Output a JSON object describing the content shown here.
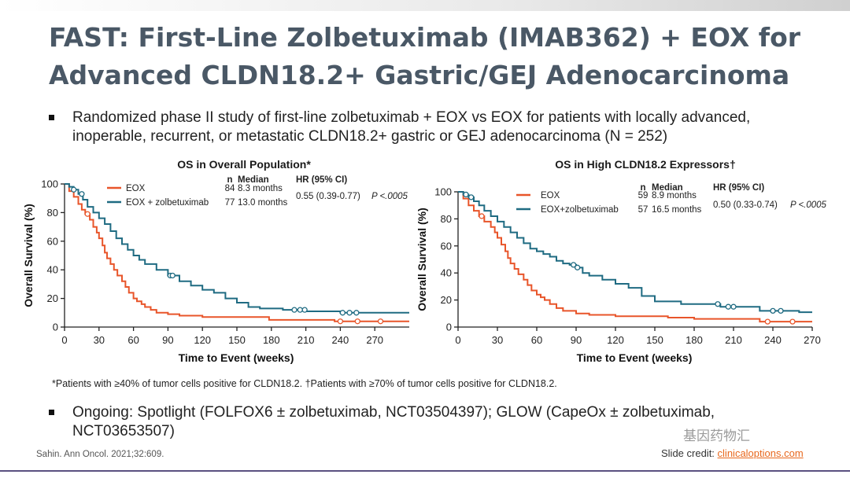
{
  "slide": {
    "title": "FAST: First-Line Zolbetuximab (IMAB362) + EOX for Advanced CLDN18.2+ Gastric/GEJ Adenocarcinoma",
    "bullet1": "Randomized phase II study of first-line zolbetuximab + EOX vs EOX for patients with locally advanced, inoperable, recurrent, or metastatic CLDN18.2+ gastric or GEJ adenocarcinoma (N = 252)",
    "bullet2": "Ongoing: Spotlight (FOLFOX6 ± zolbetuximab, NCT03504397); GLOW (CapeOx ± zolbetuximab, NCT03653507)",
    "footnote": "*Patients with ≥40% of tumor cells positive for CLDN18.2. †Patients with ≥70% of tumor cells positive for CLDN18.2.",
    "reference": "Sahin. Ann Oncol. 2021;32:609.",
    "credit_prefix": "Slide credit: ",
    "credit_link": "clinicaloptions.com",
    "watermark": "基因药物汇"
  },
  "colors": {
    "eox": "#e8552a",
    "zolb": "#1f6b82",
    "title": "#4a5866",
    "link": "#e8681e"
  },
  "chart_data": [
    {
      "type": "line",
      "title": "OS in Overall Population*",
      "xlabel": "Time to Event (weeks)",
      "ylabel": "Overall Survival (%)",
      "xlim": [
        0,
        300
      ],
      "ylim": [
        0,
        100
      ],
      "x_ticks": [
        0,
        30,
        60,
        90,
        120,
        150,
        180,
        210,
        240,
        270
      ],
      "y_ticks": [
        0,
        20,
        40,
        60,
        80,
        100
      ],
      "legend_header": {
        "n": "n",
        "median": "Median",
        "hr": "HR (95% CI)"
      },
      "hr_text": "0.55 (0.39-0.77)",
      "p_text": "P <.0005",
      "series": [
        {
          "name": "EOX",
          "n": "84",
          "median": "8.3 months",
          "x": [
            0,
            4,
            8,
            12,
            15,
            18,
            22,
            25,
            28,
            30,
            33,
            35,
            37,
            40,
            43,
            46,
            50,
            53,
            56,
            60,
            63,
            67,
            70,
            75,
            80,
            90,
            100,
            120,
            160,
            178,
            200,
            235,
            260,
            300
          ],
          "y": [
            100,
            95,
            91,
            86,
            82,
            79,
            75,
            70,
            66,
            62,
            57,
            52,
            48,
            44,
            40,
            36,
            32,
            28,
            24,
            20,
            18,
            16,
            14,
            12,
            10,
            9,
            8,
            7,
            7,
            5,
            5,
            4,
            4,
            4
          ]
        },
        {
          "name": "EOX + zolbetuximab",
          "n": "77",
          "median": "13.0 months",
          "x": [
            0,
            4,
            8,
            12,
            16,
            20,
            25,
            30,
            35,
            40,
            45,
            50,
            55,
            60,
            65,
            70,
            80,
            90,
            100,
            110,
            120,
            130,
            140,
            150,
            160,
            170,
            190,
            210,
            240,
            300
          ],
          "y": [
            100,
            98,
            96,
            93,
            89,
            84,
            80,
            76,
            72,
            67,
            62,
            58,
            54,
            50,
            47,
            44,
            40,
            36,
            32,
            29,
            26,
            24,
            20,
            17,
            14,
            13,
            12,
            11,
            10,
            10
          ]
        }
      ],
      "censors": [
        {
          "series": 0,
          "x": [
            20,
            240,
            255,
            275
          ]
        },
        {
          "series": 1,
          "x": [
            8,
            15,
            92,
            94,
            200,
            205,
            209,
            242,
            248,
            254
          ]
        }
      ]
    },
    {
      "type": "line",
      "title": "OS in High CLDN18.2 Expressors†",
      "xlabel": "Time to Event (weeks)",
      "ylabel": "Overall Survival (%)",
      "xlim": [
        0,
        270
      ],
      "ylim": [
        0,
        100
      ],
      "x_ticks": [
        0,
        30,
        60,
        90,
        120,
        150,
        180,
        210,
        240,
        270
      ],
      "y_ticks": [
        0,
        20,
        40,
        60,
        80,
        100
      ],
      "legend_header": {
        "n": "n",
        "median": "Median",
        "hr": "HR (95% CI)"
      },
      "hr_text": "0.50 (0.33-0.74)",
      "p_text": "P <.0005",
      "series": [
        {
          "name": "EOX",
          "n": "59",
          "median": "8.9 months",
          "x": [
            0,
            4,
            8,
            12,
            16,
            20,
            25,
            28,
            30,
            33,
            36,
            38,
            40,
            43,
            46,
            50,
            53,
            56,
            60,
            63,
            66,
            70,
            75,
            80,
            90,
            100,
            120,
            160,
            180,
            200,
            230,
            260
          ],
          "y": [
            100,
            95,
            90,
            86,
            82,
            78,
            74,
            70,
            66,
            61,
            56,
            51,
            47,
            43,
            39,
            35,
            31,
            27,
            24,
            22,
            20,
            17,
            14,
            12,
            10,
            9,
            8,
            7,
            6,
            6,
            4,
            4
          ]
        },
        {
          "name": "EOX+zolbetuximab",
          "n": "57",
          "median": "16.5 months",
          "x": [
            0,
            4,
            8,
            12,
            16,
            20,
            25,
            30,
            35,
            40,
            45,
            50,
            55,
            60,
            65,
            70,
            75,
            80,
            85,
            90,
            95,
            100,
            110,
            120,
            130,
            140,
            150,
            170,
            200,
            230,
            260
          ],
          "y": [
            100,
            98,
            96,
            93,
            90,
            86,
            82,
            78,
            74,
            70,
            66,
            62,
            58,
            56,
            54,
            52,
            49,
            47,
            46,
            44,
            40,
            38,
            35,
            32,
            29,
            23,
            19,
            17,
            15,
            12,
            11
          ]
        }
      ],
      "censors": [
        {
          "series": 0,
          "x": [
            18,
            236,
            255
          ]
        },
        {
          "series": 1,
          "x": [
            6,
            10,
            88,
            91,
            198,
            206,
            210,
            240,
            246
          ]
        }
      ]
    }
  ]
}
